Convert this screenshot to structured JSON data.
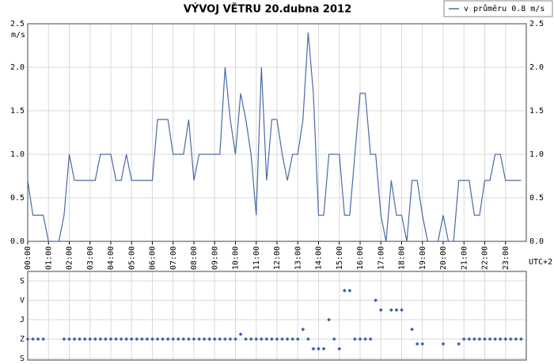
{
  "chart_data": [
    {
      "type": "line",
      "title": "VÝVOJ VĚTRU  20.dubna 2012",
      "y_label": "m/s",
      "x_label": "UTC+2",
      "xlim": [
        0,
        24
      ],
      "xticks": [
        {
          "value": 0,
          "label": "00:00"
        },
        {
          "value": 1,
          "label": "01:00"
        },
        {
          "value": 2,
          "label": "02:00"
        },
        {
          "value": 3,
          "label": "03:00"
        },
        {
          "value": 4,
          "label": "04:00"
        },
        {
          "value": 5,
          "label": "05:00"
        },
        {
          "value": 6,
          "label": "06:00"
        },
        {
          "value": 7,
          "label": "07:00"
        },
        {
          "value": 8,
          "label": "08:00"
        },
        {
          "value": 9,
          "label": "09:00"
        },
        {
          "value": 10,
          "label": "10:00"
        },
        {
          "value": 11,
          "label": "11:00"
        },
        {
          "value": 12,
          "label": "12:00"
        },
        {
          "value": 13,
          "label": "13:00"
        },
        {
          "value": 14,
          "label": "14:00"
        },
        {
          "value": 15,
          "label": "15:00"
        },
        {
          "value": 16,
          "label": "16:00"
        },
        {
          "value": 17,
          "label": "17:00"
        },
        {
          "value": 18,
          "label": "18:00"
        },
        {
          "value": 19,
          "label": "19:00"
        },
        {
          "value": 20,
          "label": "20:00"
        },
        {
          "value": 21,
          "label": "21:00"
        },
        {
          "value": 22,
          "label": "22:00"
        },
        {
          "value": 23,
          "label": "23:00"
        }
      ],
      "ylim": [
        0,
        2.5
      ],
      "yticks": [
        {
          "value": 0,
          "label": "0.0"
        },
        {
          "value": 0.5,
          "label": "0.5"
        },
        {
          "value": 1,
          "label": "1.0"
        },
        {
          "value": 1.5,
          "label": "1.5"
        },
        {
          "value": 2,
          "label": "2.0"
        },
        {
          "value": 2.5,
          "label": "2.5"
        }
      ],
      "grid": true,
      "legend": "top-right",
      "x": [
        0,
        0.25,
        0.5,
        0.75,
        1,
        1.25,
        1.5,
        1.75,
        2,
        2.25,
        2.5,
        2.75,
        3,
        3.25,
        3.5,
        3.75,
        4,
        4.25,
        4.5,
        4.75,
        5,
        5.25,
        5.5,
        5.75,
        6,
        6.25,
        6.5,
        6.75,
        7,
        7.25,
        7.5,
        7.75,
        8,
        8.25,
        8.5,
        8.75,
        9,
        9.25,
        9.5,
        9.75,
        10,
        10.25,
        10.5,
        10.75,
        11,
        11.25,
        11.5,
        11.75,
        12,
        12.25,
        12.5,
        12.75,
        13,
        13.25,
        13.5,
        13.75,
        14,
        14.25,
        14.5,
        14.75,
        15,
        15.25,
        15.5,
        15.75,
        16,
        16.25,
        16.5,
        16.75,
        17,
        17.25,
        17.5,
        17.75,
        18,
        18.25,
        18.5,
        18.75,
        19,
        19.25,
        19.5,
        19.75,
        20,
        20.25,
        20.5,
        20.75,
        21,
        21.25,
        21.5,
        21.75,
        22,
        22.25,
        22.5,
        22.75,
        23,
        23.25,
        23.5,
        23.75
      ],
      "series": [
        {
          "name": "v průměru 0.8 m/s",
          "color": "#4a6aa8",
          "values": [
            0.7,
            0.3,
            0.3,
            0.3,
            0,
            0,
            0,
            0.3,
            1.0,
            0.7,
            0.7,
            0.7,
            0.7,
            0.7,
            1.0,
            1.0,
            1.0,
            0.7,
            0.7,
            1.0,
            0.7,
            0.7,
            0.7,
            0.7,
            0.7,
            1.4,
            1.4,
            1.4,
            1.0,
            1.0,
            1.0,
            1.4,
            0.7,
            1.0,
            1.0,
            1.0,
            1.0,
            1.0,
            2.0,
            1.4,
            1.0,
            1.7,
            1.4,
            1.0,
            0.3,
            2.0,
            0.7,
            1.4,
            1.4,
            1.0,
            0.7,
            1.0,
            1.0,
            1.4,
            2.4,
            1.7,
            0.3,
            0.3,
            1.0,
            1.0,
            1.0,
            0.3,
            0.3,
            1.0,
            1.7,
            1.7,
            1.0,
            1.0,
            0.3,
            0,
            0.7,
            0.3,
            0.3,
            0,
            0.7,
            0.7,
            0.3,
            0,
            0,
            0,
            0.3,
            0,
            0,
            0.7,
            0.7,
            0.7,
            0.3,
            0.3,
            0.7,
            0.7,
            1.0,
            1.0,
            0.7,
            0.7,
            0.7,
            0.7
          ]
        }
      ]
    },
    {
      "type": "scatter",
      "xlim": [
        0,
        24
      ],
      "xticks": [
        0,
        1,
        2,
        3,
        4,
        5,
        6,
        7,
        8,
        9,
        10,
        11,
        12,
        13,
        14,
        15,
        16,
        17,
        18,
        19,
        20,
        21,
        22,
        23
      ],
      "ylim": [
        360,
        0
      ],
      "yticks": [
        {
          "value": 0,
          "label": "S"
        },
        {
          "value": 90,
          "label": "V"
        },
        {
          "value": 180,
          "label": "J"
        },
        {
          "value": 270,
          "label": "Z"
        },
        {
          "value": 360,
          "label": "S"
        }
      ],
      "grid": true,
      "color": "#3a5fa8",
      "x": [
        0,
        0.25,
        0.5,
        0.75,
        1,
        1.25,
        1.5,
        1.75,
        2,
        2.25,
        2.5,
        2.75,
        3,
        3.25,
        3.5,
        3.75,
        4,
        4.25,
        4.5,
        4.75,
        5,
        5.25,
        5.5,
        5.75,
        6,
        6.25,
        6.5,
        6.75,
        7,
        7.25,
        7.5,
        7.75,
        8,
        8.25,
        8.5,
        8.75,
        9,
        9.25,
        9.5,
        9.75,
        10,
        10.25,
        10.5,
        10.75,
        11,
        11.25,
        11.5,
        11.75,
        12,
        12.25,
        12.5,
        12.75,
        13,
        13.25,
        13.5,
        13.75,
        14,
        14.25,
        14.5,
        14.75,
        15,
        15.25,
        15.5,
        15.75,
        16,
        16.25,
        16.5,
        16.75,
        17,
        17.25,
        17.5,
        17.75,
        18,
        18.25,
        18.5,
        18.75,
        19,
        19.25,
        19.5,
        19.75,
        20,
        20.25,
        20.5,
        20.75,
        21,
        21.25,
        21.5,
        21.75,
        22,
        22.25,
        22.5,
        22.75,
        23,
        23.25,
        23.5,
        23.75
      ],
      "values": [
        270,
        270,
        270,
        270,
        null,
        null,
        null,
        270,
        270,
        270,
        270,
        270,
        270,
        270,
        270,
        270,
        270,
        270,
        270,
        270,
        270,
        270,
        270,
        270,
        270,
        270,
        270,
        270,
        270,
        270,
        270,
        270,
        270,
        270,
        270,
        270,
        270,
        270,
        270,
        270,
        270,
        247.5,
        270,
        270,
        270,
        270,
        270,
        270,
        270,
        270,
        270,
        270,
        270,
        225,
        270,
        315,
        315,
        315,
        180,
        270,
        315,
        45,
        45,
        270,
        270,
        270,
        270,
        90,
        135,
        null,
        135,
        135,
        135,
        null,
        225,
        292.5,
        292.5,
        null,
        null,
        null,
        292.5,
        null,
        null,
        292.5,
        270,
        270,
        270,
        270,
        270,
        270,
        270,
        270,
        270,
        270,
        270,
        270
      ]
    }
  ]
}
